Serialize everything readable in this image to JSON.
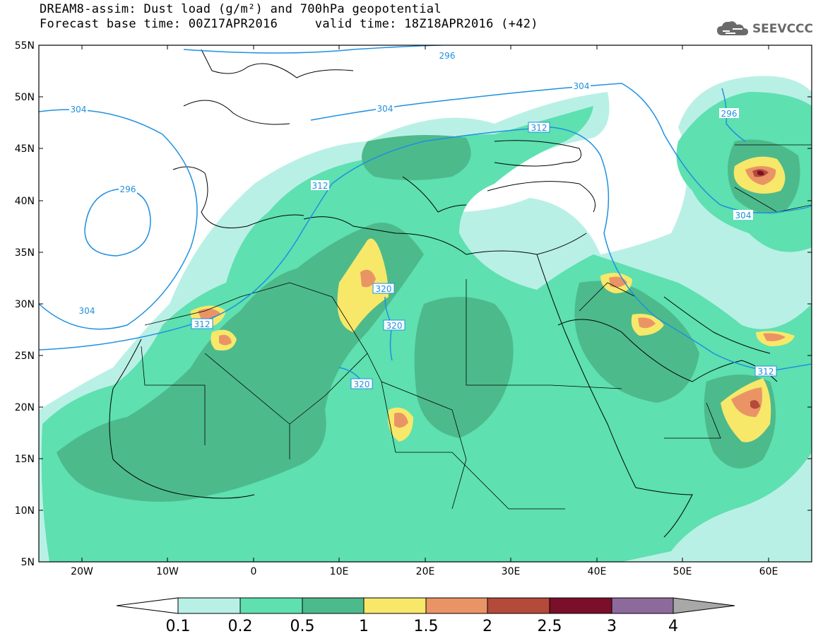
{
  "title": {
    "line1": "DREAM8-assim: Dust load (g/m²) and 700hPa geopotential",
    "line2": "Forecast base time: 00Z17APR2016     valid time: 18Z18APR2016 (+42)"
  },
  "logo": {
    "text": "SEEVCCC",
    "icon": "cloud-icon"
  },
  "axes": {
    "lat_labels": [
      "55N",
      "50N",
      "45N",
      "40N",
      "35N",
      "30N",
      "25N",
      "20N",
      "15N",
      "10N",
      "5N"
    ],
    "lon_labels": [
      "20W",
      "10W",
      "0",
      "10E",
      "20E",
      "30E",
      "40E",
      "50E",
      "60E"
    ]
  },
  "contours": {
    "color": "#1e90e0",
    "labels": [
      "296",
      "304",
      "304",
      "312",
      "296",
      "304",
      "304",
      "312",
      "312",
      "320",
      "320",
      "320",
      "304",
      "296",
      "312"
    ]
  },
  "colorbar": {
    "labels": [
      "0.1",
      "0.2",
      "0.5",
      "1",
      "1.5",
      "2",
      "2.5",
      "3",
      "4"
    ],
    "colors": [
      "#b9f0e6",
      "#5ee0b0",
      "#4dba8c",
      "#f7e86a",
      "#ea9466",
      "#b34a3a",
      "#7a0f2a",
      "#8d6a9c",
      "#a8a8a8"
    ]
  }
}
